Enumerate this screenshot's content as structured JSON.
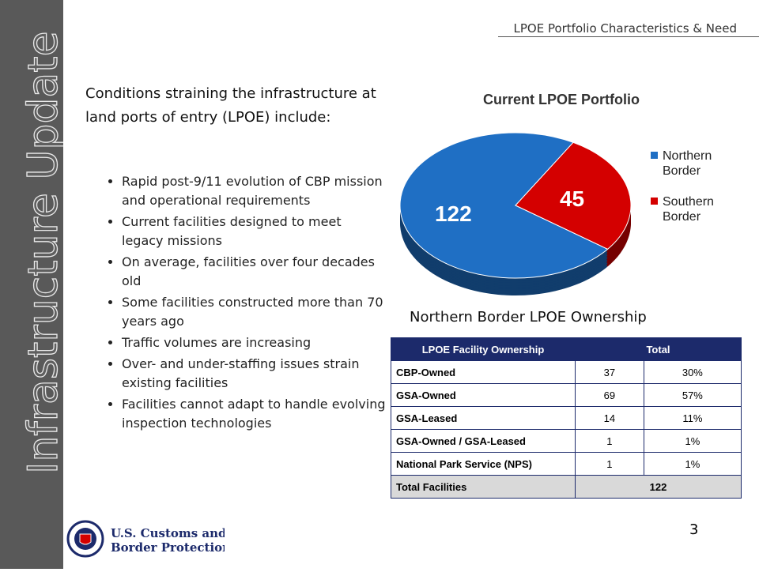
{
  "sidebar_title": "Infrastructure Update",
  "header": "LPOE Portfolio Characteristics & Need",
  "intro": "Conditions straining the infrastructure at land ports of entry (LPOE) include:",
  "bullets": [
    "Rapid post-9/11 evolution of CBP mission and operational requirements",
    "Current facilities designed to meet legacy missions",
    "On average, facilities over four decades old",
    "Some facilities constructed more than 70 years ago",
    "Traffic volumes are increasing",
    "Over- and under-staffing issues strain existing facilities",
    "Facilities cannot adapt to handle evolving inspection technologies"
  ],
  "chart_data": {
    "type": "pie",
    "title": "Current LPOE Portfolio",
    "categories": [
      "Northern Border",
      "Southern Border"
    ],
    "values": [
      122,
      45
    ],
    "colors": [
      "#1f6fc4",
      "#d40000"
    ]
  },
  "table": {
    "caption": "Northern Border LPOE Ownership",
    "header": [
      "LPOE  Facility Ownership",
      "Total"
    ],
    "rows": [
      [
        "CBP-Owned",
        37,
        "30%"
      ],
      [
        "GSA-Owned",
        69,
        "57%"
      ],
      [
        "GSA-Leased",
        14,
        "11%"
      ],
      [
        "GSA-Owned / GSA-Leased",
        1,
        "1%"
      ],
      [
        "National Park Service (NPS)",
        1,
        "1%"
      ]
    ],
    "total": [
      "Total Facilities",
      122
    ]
  },
  "footer": {
    "logo_lines": [
      "U.S. Customs and",
      "Border Protection"
    ],
    "page": "3"
  }
}
